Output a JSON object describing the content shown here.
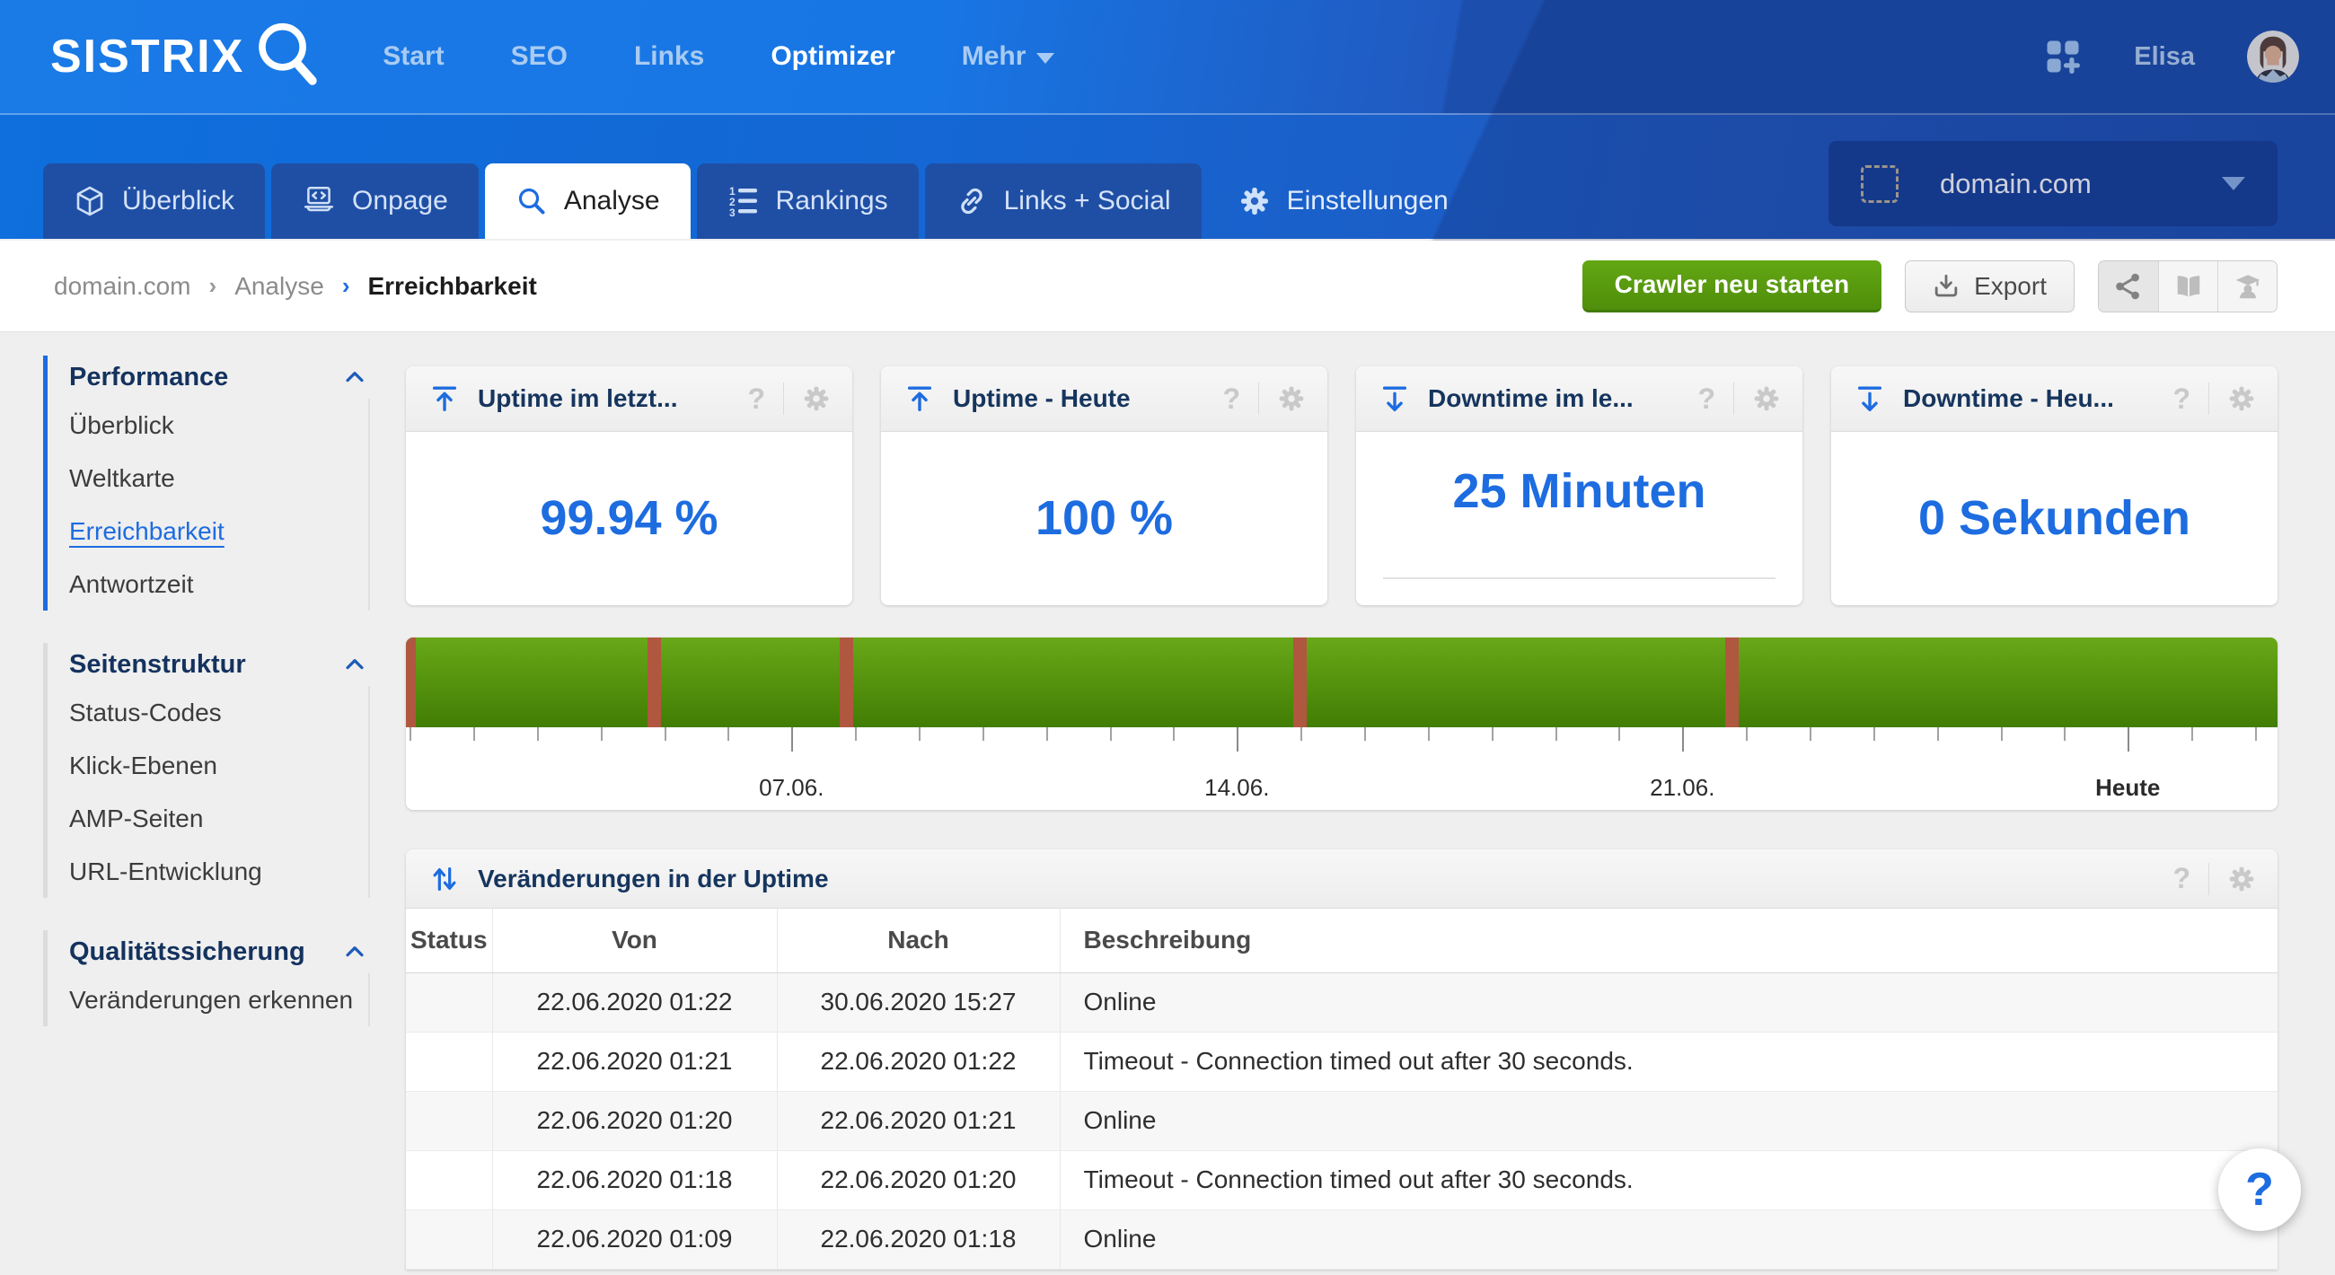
{
  "ui": {
    "help_glyph": "?"
  },
  "topnav": {
    "logo": "SISTRIX",
    "links": [
      {
        "label": "Start"
      },
      {
        "label": "SEO"
      },
      {
        "label": "Links"
      },
      {
        "label": "Optimizer",
        "active": true
      },
      {
        "label": "Mehr",
        "has_caret": true
      }
    ],
    "user_name": "Elisa"
  },
  "tabbar": {
    "tabs": [
      {
        "label": "Überblick",
        "icon": "cube-icon"
      },
      {
        "label": "Onpage",
        "icon": "laptop-code-icon"
      },
      {
        "label": "Analyse",
        "icon": "search-icon",
        "active": true
      },
      {
        "label": "Rankings",
        "icon": "numbered-list-icon"
      },
      {
        "label": "Links + Social",
        "icon": "link-icon"
      },
      {
        "label": "Einstellungen",
        "icon": "gear-icon",
        "plain": true
      }
    ],
    "domain_selector": {
      "value": "domain.com"
    }
  },
  "breadcrumb": {
    "items": [
      "domain.com",
      "Analyse",
      "Erreichbarkeit"
    ]
  },
  "actions": {
    "restart_crawler": "Crawler neu starten",
    "export": "Export"
  },
  "sidebar": {
    "sections": [
      {
        "title": "Performance",
        "active": true,
        "items": [
          "Überblick",
          "Weltkarte",
          "Erreichbarkeit",
          "Antwortzeit"
        ],
        "active_item": "Erreichbarkeit"
      },
      {
        "title": "Seitenstruktur",
        "items": [
          "Status-Codes",
          "Klick-Ebenen",
          "AMP-Seiten",
          "URL-Entwicklung"
        ]
      },
      {
        "title": "Qualitätssicherung",
        "items": [
          "Veränderungen erkennen"
        ]
      }
    ]
  },
  "kpi_cards": [
    {
      "title": "Uptime im letzt...",
      "value": "99.94 %",
      "icon": "uptime-icon"
    },
    {
      "title": "Uptime - Heute",
      "value": "100 %",
      "icon": "uptime-icon"
    },
    {
      "title": "Downtime im le...",
      "value": "25 Minuten",
      "icon": "downtime-icon",
      "has_baseline": true
    },
    {
      "title": "Downtime - Heu...",
      "value": "0 Sekunden",
      "icon": "downtime-icon"
    }
  ],
  "chart_data": {
    "type": "heatmap",
    "subtype": "uptime-status-strip",
    "title": "",
    "description": "Horizontal uptime timeline for approx. 30 days; green = online, narrow red stripes = downtime events",
    "colors": {
      "up_top": "#68a818",
      "up_bottom": "#417d04",
      "down": "#b0573f"
    },
    "axis": {
      "first_tick_pct": 0.2,
      "tick_step_pct": 3.4,
      "tick_count": 30,
      "major_tick_indices": [
        6,
        13,
        20,
        27
      ],
      "labels": [
        {
          "label": "07.06.",
          "position_pct": 20.6
        },
        {
          "label": "14.06.",
          "position_pct": 44.4
        },
        {
          "label": "21.06.",
          "position_pct": 68.2
        },
        {
          "label": "Heute",
          "position_pct": 92.0,
          "bold": true
        }
      ]
    },
    "outages": [
      {
        "position_pct": 0,
        "width_pct": 0.55
      },
      {
        "position_pct": 12.9,
        "width_pct": 0.72
      },
      {
        "position_pct": 23.2,
        "width_pct": 0.72
      },
      {
        "position_pct": 47.4,
        "width_pct": 0.72
      },
      {
        "position_pct": 70.5,
        "width_pct": 0.72
      }
    ]
  },
  "table": {
    "title": "Veränderungen in der Uptime",
    "columns": [
      "Status",
      "Von",
      "Nach",
      "Beschreibung"
    ],
    "rows": [
      {
        "status": "",
        "von": "22.06.2020 01:22",
        "nach": "30.06.2020 15:27",
        "beschreibung": "Online"
      },
      {
        "status": "",
        "von": "22.06.2020 01:21",
        "nach": "22.06.2020 01:22",
        "beschreibung": "Timeout - Connection timed out after 30 seconds."
      },
      {
        "status": "",
        "von": "22.06.2020 01:20",
        "nach": "22.06.2020 01:21",
        "beschreibung": "Online"
      },
      {
        "status": "",
        "von": "22.06.2020 01:18",
        "nach": "22.06.2020 01:20",
        "beschreibung": "Timeout - Connection timed out after 30 seconds."
      },
      {
        "status": "",
        "von": "22.06.2020 01:09",
        "nach": "22.06.2020 01:18",
        "beschreibung": "Online"
      }
    ]
  }
}
